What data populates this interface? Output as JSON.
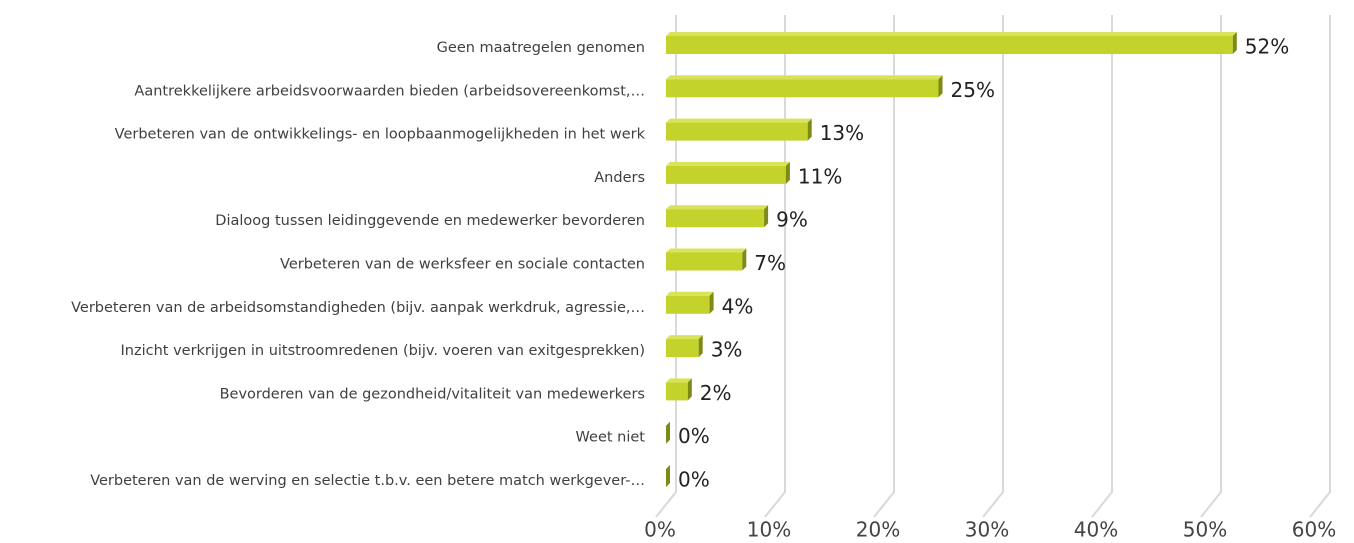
{
  "chart_data": {
    "type": "bar",
    "categories": [
      "Geen maatregelen genomen",
      "Aantrekkelijkere arbeidsvoorwaarden bieden (arbeidsovereenkomst,…",
      "Verbeteren van de ontwikkelings- en loopbaanmogelijkheden in het werk",
      "Anders",
      "Dialoog tussen leidinggevende en medewerker bevorderen",
      "Verbeteren van de werksfeer en sociale contacten",
      "Verbeteren van de arbeidsomstandigheden (bijv. aanpak werkdruk, agressie,…",
      "Inzicht verkrijgen in uitstroomredenen (bijv. voeren van exitgesprekken)",
      "Bevorderen van de gezondheid/vitaliteit van medewerkers",
      "Weet niet",
      "Verbeteren van de werving en selectie t.b.v. een betere match werkgever-…"
    ],
    "values": [
      52,
      25,
      13,
      11,
      9,
      7,
      4,
      3,
      2,
      0,
      0
    ],
    "value_labels": [
      "52%",
      "25%",
      "13%",
      "11%",
      "9%",
      "7%",
      "4%",
      "3%",
      "2%",
      "0%",
      "0%"
    ],
    "color": "#c3d32b",
    "xlim": [
      0,
      60
    ],
    "xticks": [
      {
        "value": 0,
        "label": "0%"
      },
      {
        "value": 10,
        "label": "10%"
      },
      {
        "value": 20,
        "label": "20%"
      },
      {
        "value": 30,
        "label": "30%"
      },
      {
        "value": 40,
        "label": "40%"
      },
      {
        "value": 50,
        "label": "50%"
      },
      {
        "value": 60,
        "label": "60%"
      }
    ],
    "grid": true
  }
}
